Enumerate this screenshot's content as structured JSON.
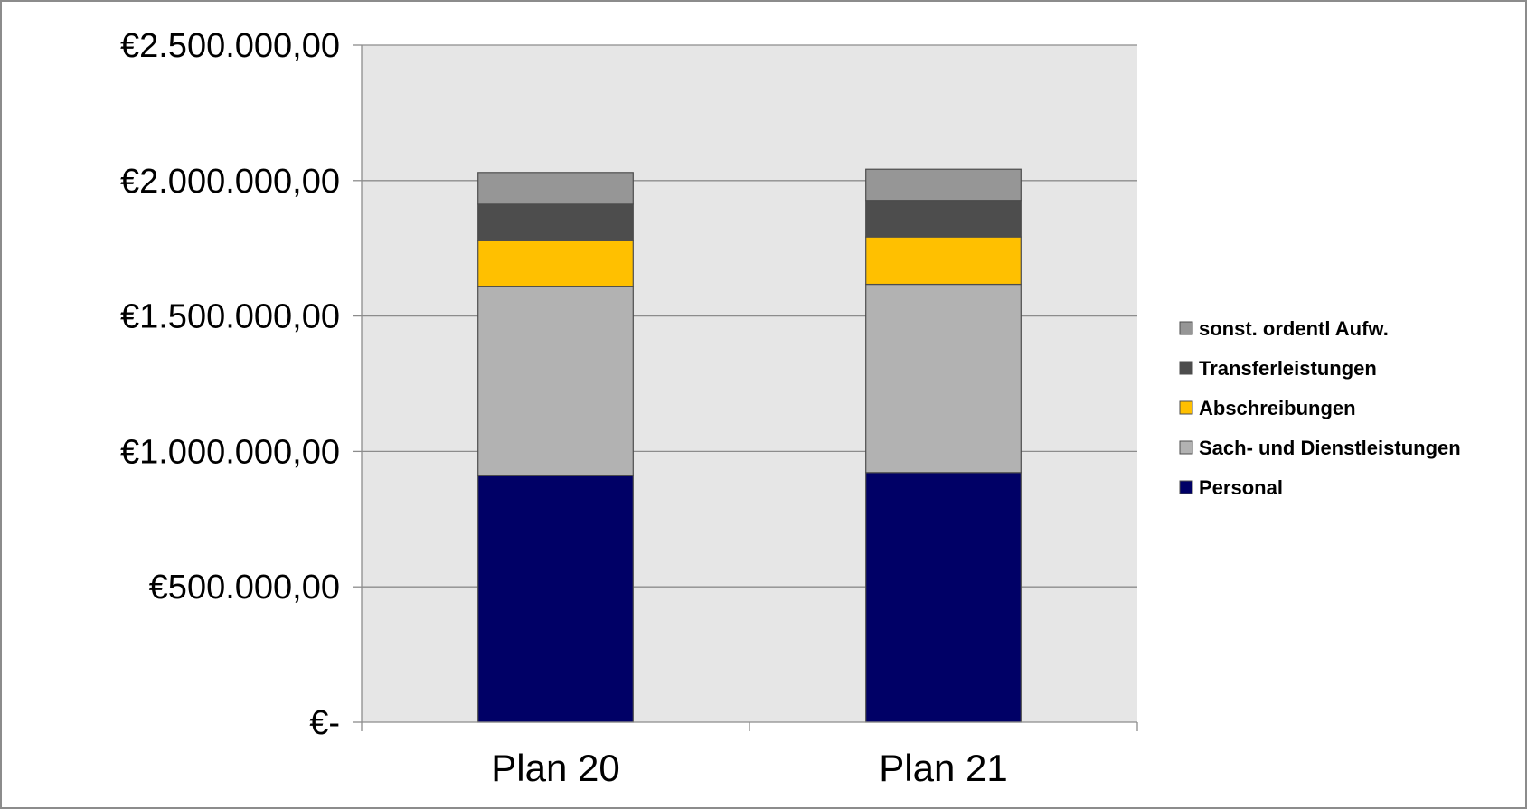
{
  "chart_data": {
    "type": "bar",
    "stacked": true,
    "categories": [
      "Plan 20",
      "Plan 21"
    ],
    "series": [
      {
        "name": "Personal",
        "color": "#000066",
        "values": [
          910000,
          922000
        ]
      },
      {
        "name": "Sach- und Dienstleistungen",
        "color": "#b2b2b2",
        "values": [
          700000,
          695000
        ]
      },
      {
        "name": "Abschreibungen",
        "color": "#ffc000",
        "values": [
          168000,
          175000
        ]
      },
      {
        "name": "Transferleistungen",
        "color": "#4d4d4d",
        "values": [
          135000,
          135000
        ]
      },
      {
        "name": "sonst. ordentl Aufw.",
        "color": "#969696",
        "values": [
          117000,
          115000
        ]
      }
    ],
    "ylim": [
      0,
      2500000
    ],
    "yticks": [
      {
        "value": 0,
        "label": "€-"
      },
      {
        "value": 500000,
        "label": "€500.000,00"
      },
      {
        "value": 1000000,
        "label": "€1.000.000,00"
      },
      {
        "value": 1500000,
        "label": "€1.500.000,00"
      },
      {
        "value": 2000000,
        "label": "€2.000.000,00"
      },
      {
        "value": 2500000,
        "label": "€2.500.000,00"
      }
    ],
    "legend_order": [
      "sonst. ordentl Aufw.",
      "Transferleistungen",
      "Abschreibungen",
      "Sach- und Dienstleistungen",
      "Personal"
    ],
    "legend_position": "right",
    "grid": true,
    "plot_background": "#e6e6e6",
    "title": "",
    "xlabel": "",
    "ylabel": ""
  }
}
